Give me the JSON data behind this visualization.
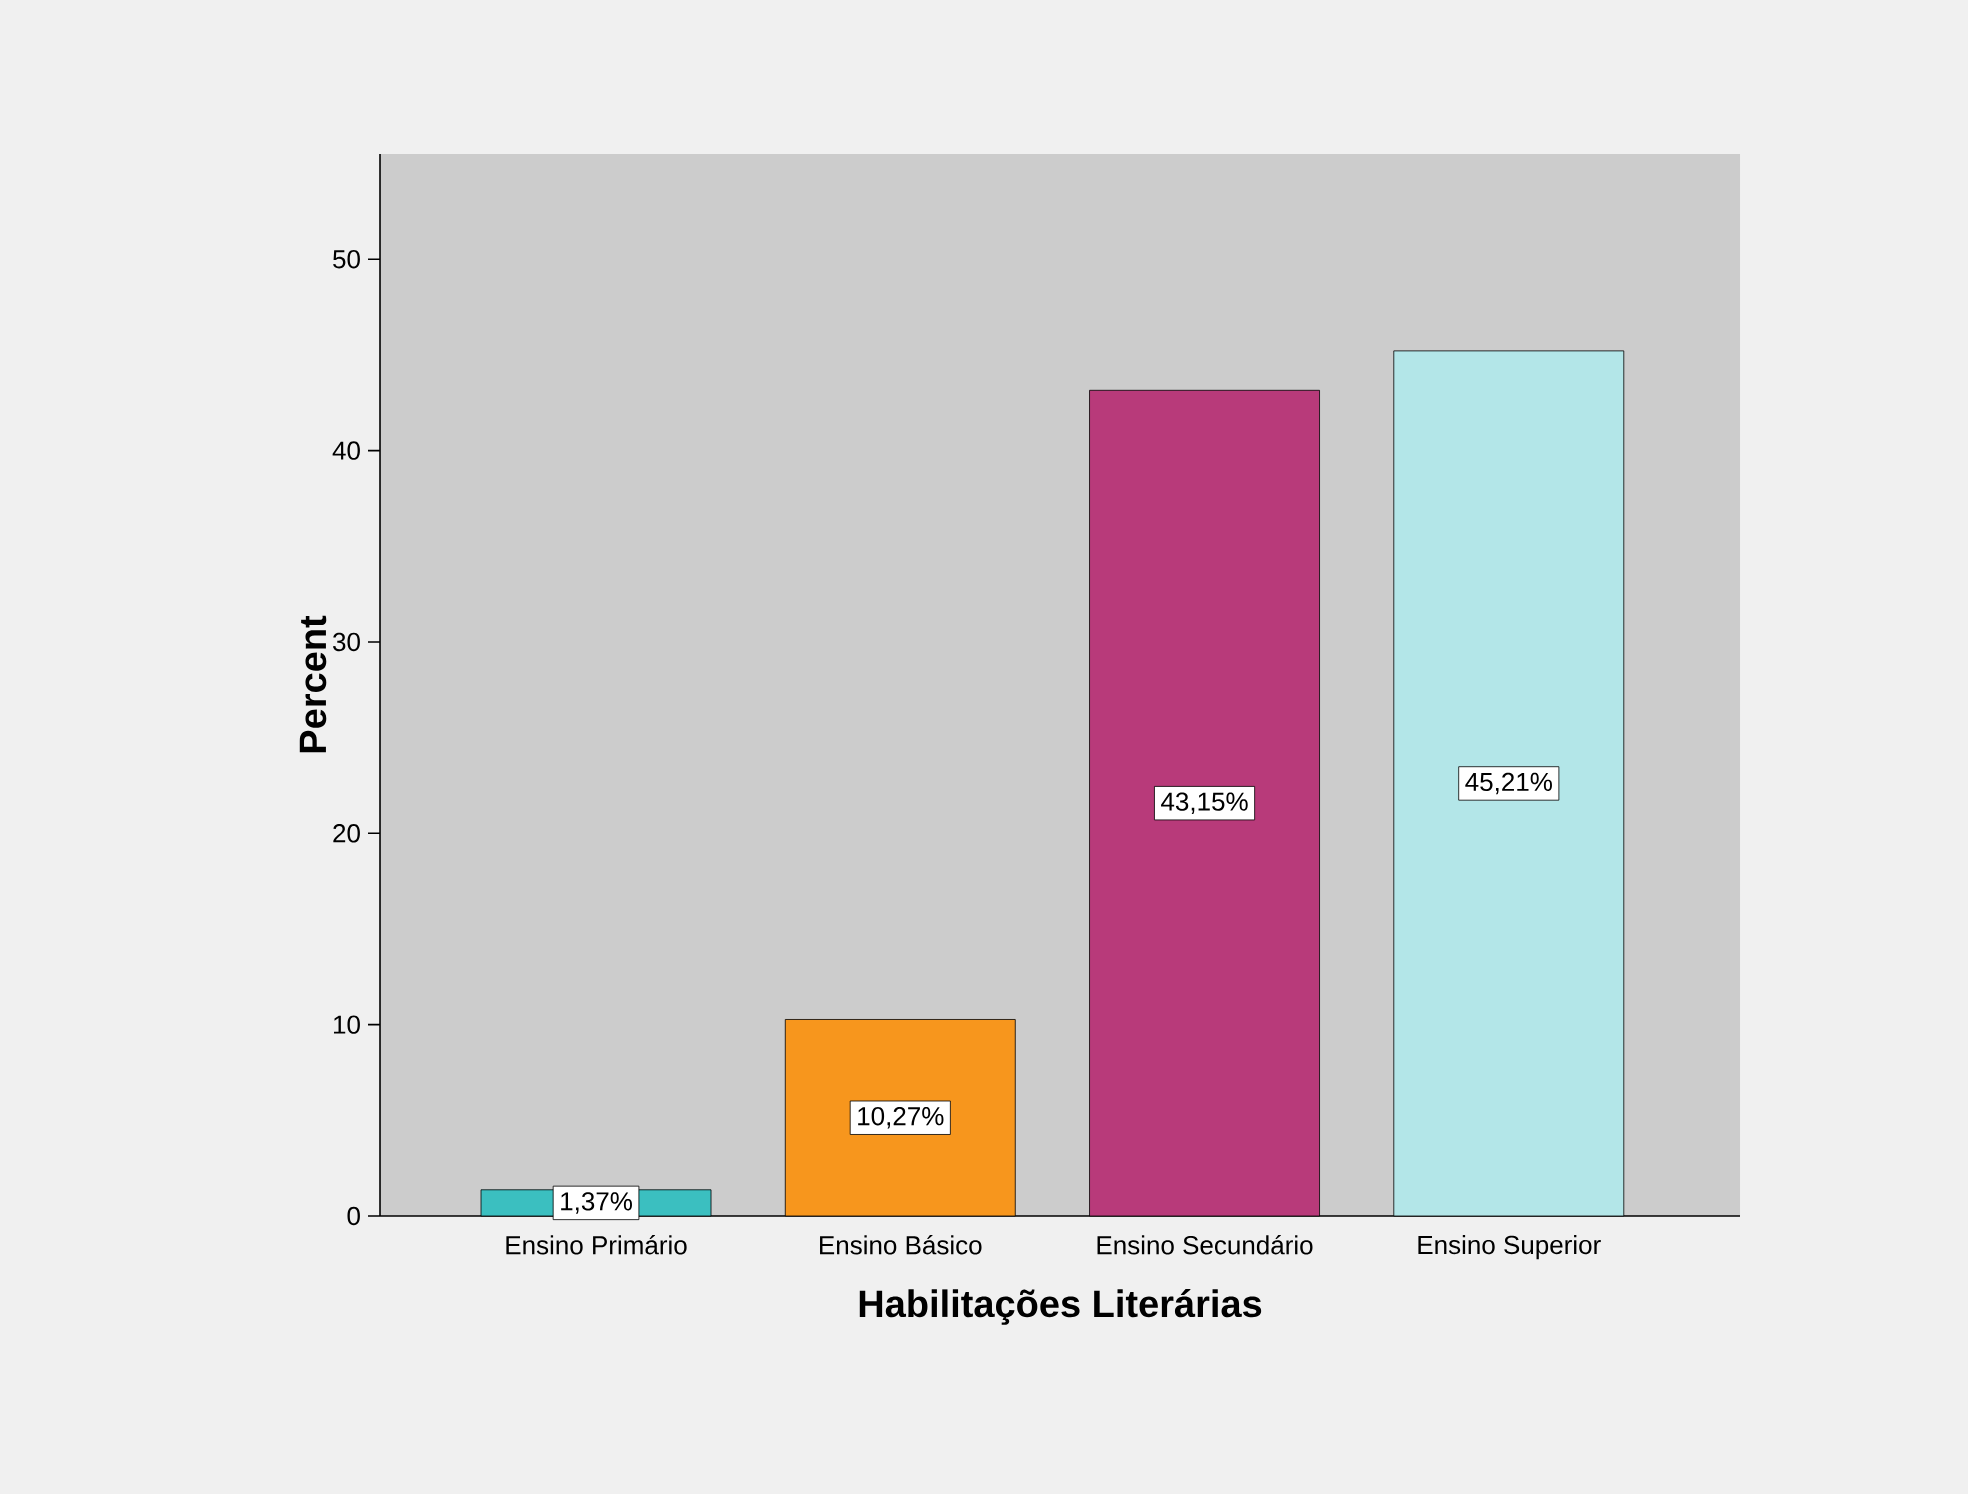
{
  "chart_data": {
    "type": "bar",
    "xlabel": "Habilitações Literárias",
    "ylabel": "Percent",
    "categories": [
      "Ensino Primário",
      "Ensino Básico",
      "Ensino Secundário",
      "Ensino Superior"
    ],
    "values": [
      1.37,
      10.27,
      43.15,
      45.21
    ],
    "value_labels": [
      "1,37%",
      "10,27%",
      "43,15%",
      "45,21%"
    ],
    "colors": [
      "#3bbfc0",
      "#f7961d",
      "#b83a7a",
      "#b3e6e8"
    ],
    "ylim": [
      0,
      55.5
    ],
    "yticks": [
      0,
      10,
      20,
      30,
      40,
      50
    ]
  }
}
